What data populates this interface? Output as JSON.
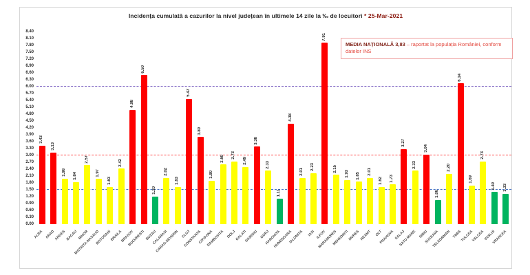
{
  "window": {
    "background": "#ffffff",
    "card_border_color": "#d6d6d6"
  },
  "title": {
    "main": "Incidența cumulată a cazurilor la nivel județean în ultimele 14 zile  la ‰ de locuitori ",
    "date": "* 25-Mar-2021"
  },
  "legend_box": {
    "bold_text": "MEDIA NAȚIONALĂ 3,83",
    "rest_text": " – raportat la populația României, conform datelor INS",
    "border_color": "#efa0a0"
  },
  "chart_data": {
    "type": "bar",
    "title": "Incidența cumulată a cazurilor la nivel județean în ultimele 14 zile la ‰ de locuitori * 25-Mar-2021",
    "xlabel": "",
    "ylabel": "",
    "ylim": [
      0,
      8.4
    ],
    "ytick_step": 0.3,
    "grid": "off",
    "legend_position": "top-right",
    "reference_lines": [
      {
        "label": "6.00",
        "value": 6.0,
        "color": "#7a5fc0"
      },
      {
        "label": "3.00",
        "value": 3.0,
        "color": "#ff4040"
      },
      {
        "label": "1.50",
        "value": 1.5,
        "color": "#4472c4"
      }
    ],
    "palette": {
      "red": "#fe0000",
      "yellow": "#ffff00",
      "green": "#00b45f"
    },
    "categories": [
      "ALBA",
      "ARAD",
      "ARGES",
      "BACAU",
      "BIHOR",
      "BISTRITA-NASAUD",
      "BOTOSANI",
      "BRAILA",
      "BRASOV",
      "BUCURESTI",
      "BUZAU",
      "CALARASI",
      "CARAS-SEVERIN",
      "CLUJ",
      "CONSTANTA",
      "COVASNA",
      "DAMBOVITA",
      "DOLJ",
      "GALATI",
      "GIURGIU",
      "GORJ",
      "HARGHITA",
      "HUNEDOARA",
      "IALOMITA",
      "IASI",
      "ILFOV",
      "MARAMURES",
      "MEHEDINTI",
      "MURES",
      "NEAMT",
      "OLT",
      "PRAHOVA",
      "SALAJ",
      "SATU MARE",
      "SIBIU",
      "SUCEAVA",
      "TELEORMAN",
      "TIMIS",
      "TULCEA",
      "VALCEA",
      "VASLUI",
      "VRANCEA"
    ],
    "values": [
      3.43,
      3.13,
      1.98,
      1.84,
      2.57,
      1.97,
      1.63,
      2.42,
      4.98,
      6.5,
      1.2,
      2.02,
      1.63,
      5.47,
      3.8,
      1.9,
      2.6,
      2.73,
      2.49,
      3.38,
      2.33,
      1.11,
      4.38,
      2.01,
      2.23,
      7.91,
      2.15,
      1.93,
      1.85,
      2.01,
      1.62,
      1.73,
      3.27,
      2.33,
      3.04,
      1.06,
      2.2,
      6.14,
      1.69,
      2.73,
      1.4,
      1.33
    ],
    "colors": [
      "red",
      "red",
      "yellow",
      "yellow",
      "yellow",
      "yellow",
      "yellow",
      "yellow",
      "red",
      "red",
      "green",
      "yellow",
      "yellow",
      "red",
      "red",
      "yellow",
      "yellow",
      "yellow",
      "yellow",
      "red",
      "yellow",
      "green",
      "red",
      "yellow",
      "yellow",
      "red",
      "yellow",
      "yellow",
      "yellow",
      "yellow",
      "yellow",
      "yellow",
      "red",
      "yellow",
      "red",
      "green",
      "yellow",
      "red",
      "yellow",
      "yellow",
      "green",
      "green"
    ]
  }
}
